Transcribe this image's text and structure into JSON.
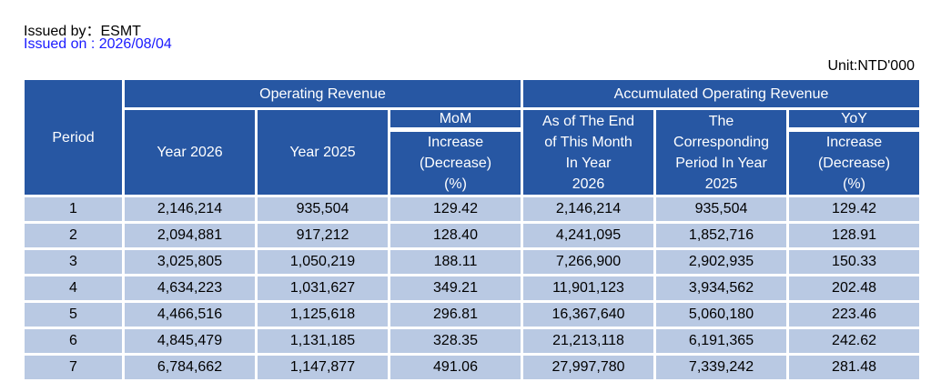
{
  "header": {
    "issued_by": "Issued by：ESMT",
    "issued_on": "Issued on : 2026/08/04",
    "unit": "Unit:NTD'000"
  },
  "table": {
    "period_header": "Period",
    "operating_revenue_header": "Operating Revenue",
    "accumulated_header": "Accumulated Operating Revenue",
    "year_2026": "Year 2026",
    "year_2025": "Year 2025",
    "mom": "MoM",
    "mom_lines": [
      "Increase",
      "(Decrease)",
      "(%)"
    ],
    "asof_lines": [
      "As of The End",
      "of This Month",
      "In Year",
      "2026"
    ],
    "corr_lines": [
      "The",
      "Corresponding",
      "Period In Year",
      "2025"
    ],
    "yoy": "YoY",
    "yoy_lines": [
      "Increase",
      "(Decrease)",
      "(%)"
    ],
    "rows": [
      {
        "period": "1",
        "y2026": "2,146,214",
        "y2025": "935,504",
        "mom": "129.42",
        "acc2026": "2,146,214",
        "acc2025": "935,504",
        "yoy": "129.42"
      },
      {
        "period": "2",
        "y2026": "2,094,881",
        "y2025": "917,212",
        "mom": "128.40",
        "acc2026": "4,241,095",
        "acc2025": "1,852,716",
        "yoy": "128.91"
      },
      {
        "period": "3",
        "y2026": "3,025,805",
        "y2025": "1,050,219",
        "mom": "188.11",
        "acc2026": "7,266,900",
        "acc2025": "2,902,935",
        "yoy": "150.33"
      },
      {
        "period": "4",
        "y2026": "4,634,223",
        "y2025": "1,031,627",
        "mom": "349.21",
        "acc2026": "11,901,123",
        "acc2025": "3,934,562",
        "yoy": "202.48"
      },
      {
        "period": "5",
        "y2026": "4,466,516",
        "y2025": "1,125,618",
        "mom": "296.81",
        "acc2026": "16,367,640",
        "acc2025": "5,060,180",
        "yoy": "223.46"
      },
      {
        "period": "6",
        "y2026": "4,845,479",
        "y2025": "1,131,185",
        "mom": "328.35",
        "acc2026": "21,213,118",
        "acc2025": "6,191,365",
        "yoy": "242.62"
      },
      {
        "period": "7",
        "y2026": "6,784,662",
        "y2025": "1,147,877",
        "mom": "491.06",
        "acc2026": "27,997,780",
        "acc2025": "7,339,242",
        "yoy": "281.48"
      }
    ]
  }
}
